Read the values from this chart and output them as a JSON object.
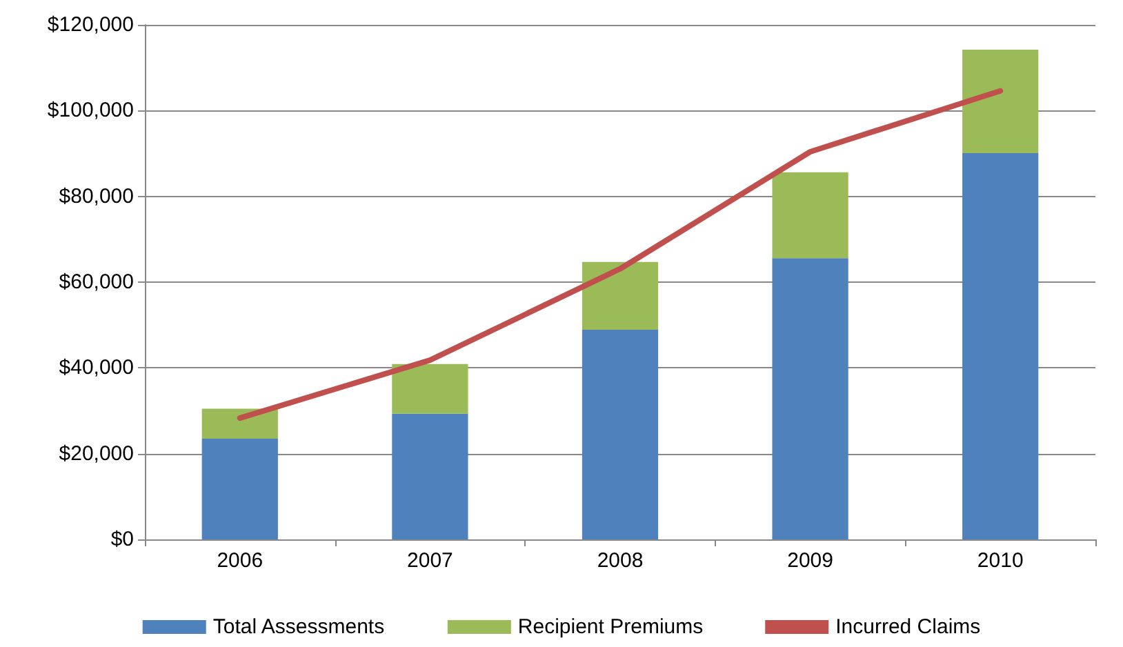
{
  "chart_data": {
    "type": "bar",
    "stacked": true,
    "categories": [
      "2006",
      "2007",
      "2008",
      "2009",
      "2010"
    ],
    "series": [
      {
        "name": "Total Assessments",
        "color": "#4f81bd",
        "values": [
          23500,
          29300,
          48900,
          65600,
          90100
        ]
      },
      {
        "name": "Recipient Premiums",
        "color": "#9bbb59",
        "values": [
          7000,
          11600,
          15800,
          20000,
          24100
        ]
      },
      {
        "name": "Incurred Claims",
        "type": "line",
        "color": "#c0504d",
        "values": [
          28300,
          41800,
          63100,
          90400,
          104600
        ],
        "marker": "none"
      }
    ],
    "ylim": [
      0,
      120000
    ],
    "yticks": [
      {
        "value": 0,
        "label": "$0"
      },
      {
        "value": 20000,
        "label": "$20,000"
      },
      {
        "value": 40000,
        "label": "$40,000"
      },
      {
        "value": 60000,
        "label": "$60,000"
      },
      {
        "value": 80000,
        "label": "$80,000"
      },
      {
        "value": 100000,
        "label": "$100,000"
      },
      {
        "value": 120000,
        "label": "$120,000"
      }
    ],
    "grid": "y",
    "legend": "bottom"
  }
}
